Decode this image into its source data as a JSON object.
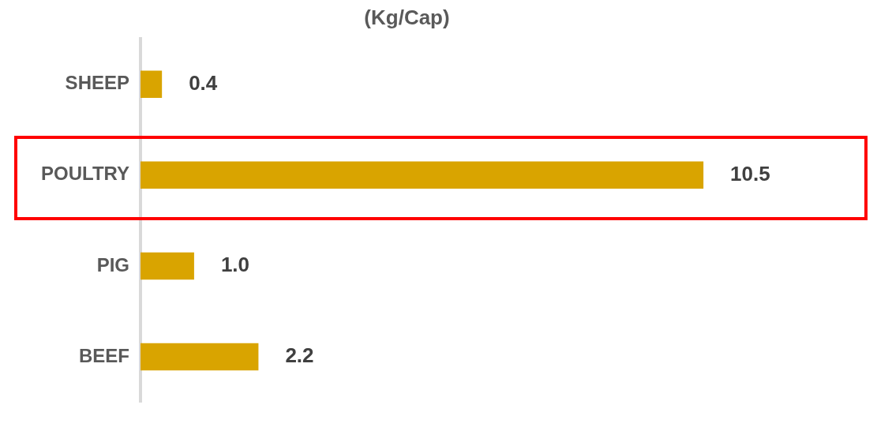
{
  "chart_data": {
    "type": "bar",
    "orientation": "horizontal",
    "title": "(Kg/Cap)",
    "categories": [
      "SHEEP",
      "POULTRY",
      "PIG",
      "BEEF"
    ],
    "values": [
      0.4,
      10.5,
      1.0,
      2.2
    ],
    "value_labels": [
      "0.4",
      "10.5",
      "1.0",
      "2.2"
    ],
    "color": "#d9a400",
    "legend": false
  }
}
